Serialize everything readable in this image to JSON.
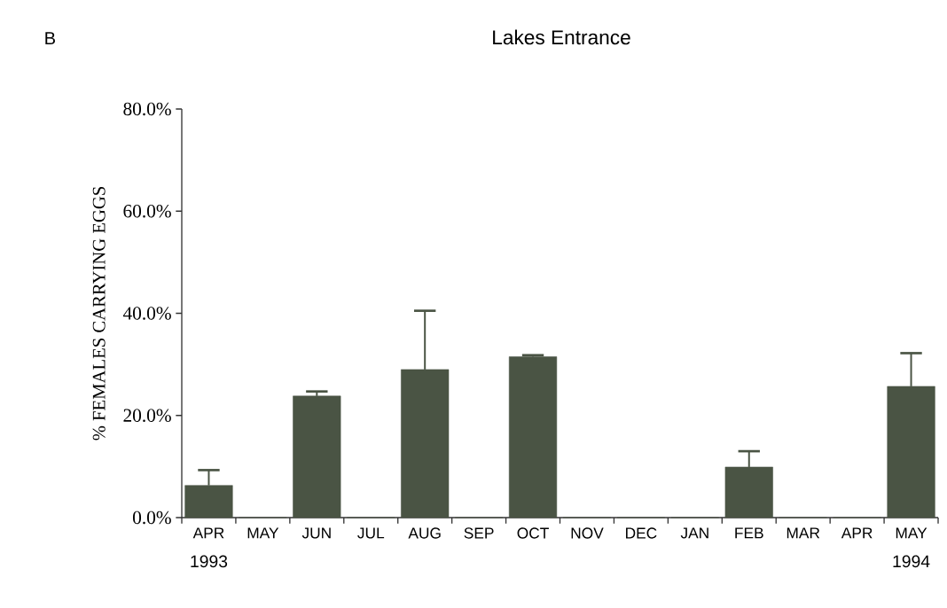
{
  "chart_data": {
    "type": "bar",
    "title": "Lakes Entrance",
    "ylabel": "% FEMALES CARRYING EGGS",
    "categories": [
      "APR",
      "MAY",
      "JUN",
      "JUL",
      "AUG",
      "SEP",
      "OCT",
      "NOV",
      "DEC",
      "JAN",
      "FEB",
      "MAR",
      "APR",
      "MAY"
    ],
    "values": [
      6.3,
      0,
      23.8,
      0,
      29.0,
      0,
      31.5,
      0,
      0,
      0,
      9.9,
      0,
      0,
      25.7
    ],
    "errors": [
      3.0,
      null,
      0.9,
      null,
      11.5,
      null,
      0.3,
      null,
      null,
      null,
      3.1,
      null,
      null,
      6.5
    ],
    "color": "#4a5444",
    "ylim": [
      0,
      80
    ],
    "yticks": [
      {
        "value": 0,
        "label": "0.0%"
      },
      {
        "value": 20,
        "label": "20.0%"
      },
      {
        "value": 40,
        "label": "40.0%"
      },
      {
        "value": 60,
        "label": "60.0%"
      },
      {
        "value": 80,
        "label": "80.0%"
      }
    ],
    "annotations": [
      "B",
      "1993",
      "1994"
    ]
  }
}
